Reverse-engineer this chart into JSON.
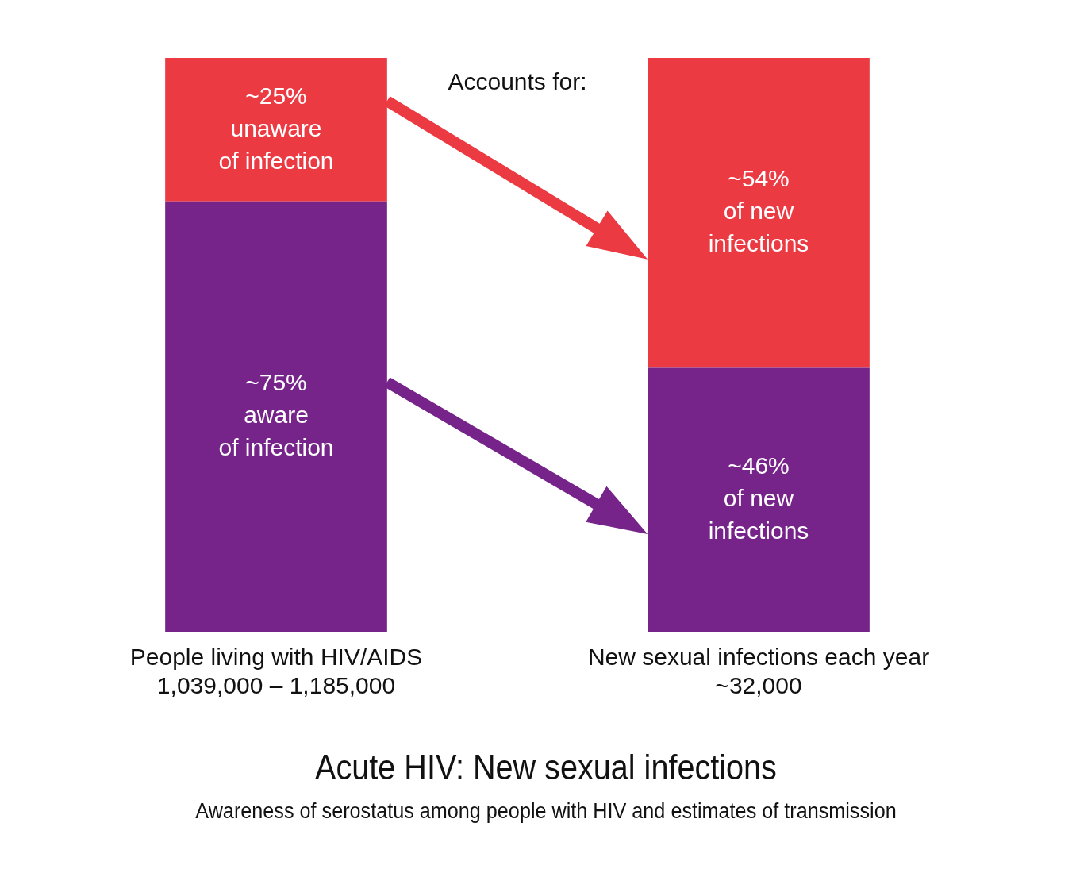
{
  "chart_data": {
    "type": "bar",
    "stacked": true,
    "title": "Acute HIV:  New sexual infections",
    "subtitle": "Awareness of serostatus among people with HIV and estimates of transmission",
    "categories": [
      "People living with HIV/AIDS\n1,039,000 – 1,185,000",
      "New sexual infections each year\n~32,000"
    ],
    "series": [
      {
        "color": "#76238a",
        "values": [
          75,
          46
        ],
        "value_labels": [
          "~75%\naware\nof infection",
          "~46%\nof new\ninfections"
        ]
      },
      {
        "color": "#ec3a43",
        "values": [
          25,
          54
        ],
        "value_labels": [
          "~25%\nunaware\nof infection",
          "~54%\nof new\ninfections"
        ]
      }
    ],
    "ylim": [
      0,
      100
    ],
    "tick_labels": "x",
    "grid": false,
    "legend": false,
    "annotations": [
      "Accounts for:"
    ]
  }
}
